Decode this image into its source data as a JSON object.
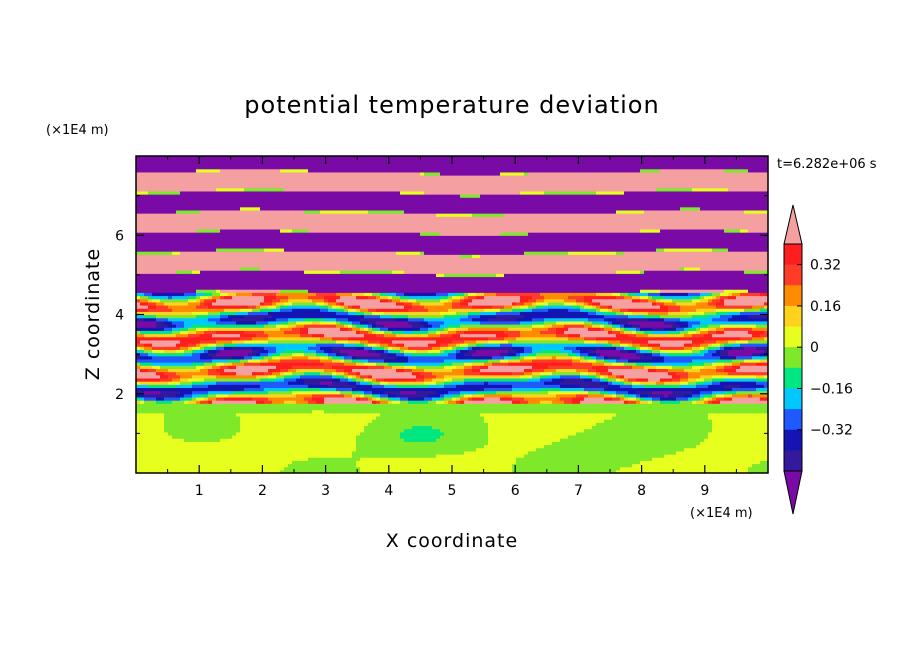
{
  "chart_data": {
    "type": "heatmap",
    "title": "potential temperature deviation",
    "xlabel": "X coordinate",
    "ylabel": "Z coordinate",
    "x_unit": "(×1E4 m)",
    "y_unit": "(×1E4 m)",
    "time_label": "t=6.282e+06 s",
    "xlim": [
      0,
      10
    ],
    "ylim": [
      0,
      8
    ],
    "x_ticks": [
      "1",
      "2",
      "3",
      "4",
      "5",
      "6",
      "7",
      "8",
      "9"
    ],
    "y_ticks": [
      "2",
      "4",
      "6"
    ],
    "colorbar": {
      "levels": [
        -0.48,
        -0.4,
        -0.32,
        -0.24,
        -0.16,
        -0.08,
        0,
        0.08,
        0.16,
        0.24,
        0.32,
        0.4,
        0.48
      ],
      "colors": [
        "#7a0aa6",
        "#33199c",
        "#1414b4",
        "#1e5aff",
        "#00c8ff",
        "#00e680",
        "#7ee82a",
        "#e6ff1e",
        "#ffd21e",
        "#ff8c00",
        "#ff3c28",
        "#ff1e1e",
        "#f5a0a0"
      ],
      "labels": [
        "0.32",
        "0.16",
        "0",
        "−0.16",
        "−0.32"
      ],
      "extend": "both",
      "low_color": "#7a0aa6",
      "high_color": "#f5a0a0"
    },
    "bands": [
      {
        "z": [
          0.0,
          1.8
        ],
        "pattern": "green-low"
      },
      {
        "z": [
          1.8,
          4.6
        ],
        "pattern": "mixed"
      },
      {
        "z": [
          4.6,
          8.0
        ],
        "pattern": "stripes"
      }
    ]
  }
}
